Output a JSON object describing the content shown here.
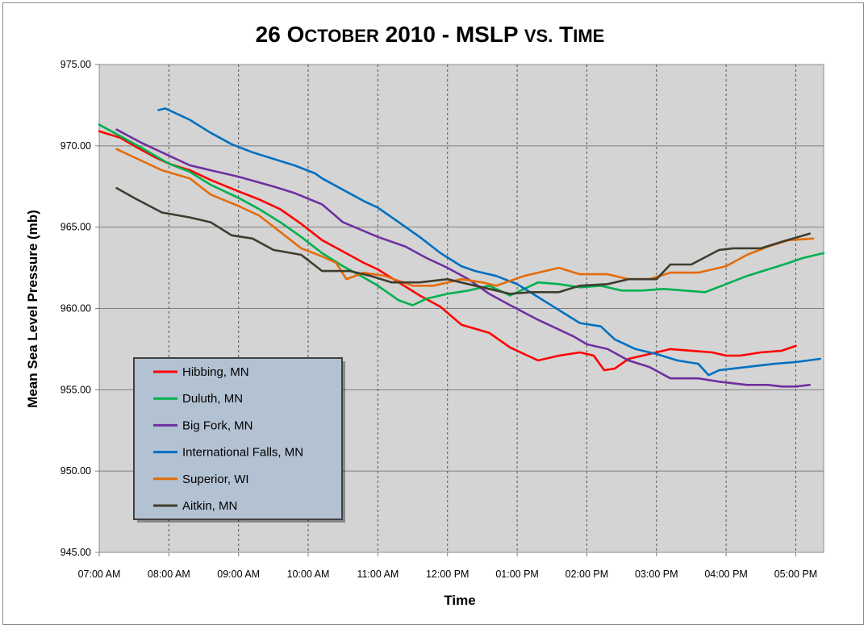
{
  "chart_data": {
    "type": "line",
    "title_parts": {
      "date": "26",
      "month_cap": "O",
      "month_rest": "CTOBER",
      "year_var": "2010 - MSLP",
      "vs": "VS.",
      "time_cap": "T",
      "time_rest": "IME"
    },
    "xlabel": "Time",
    "ylabel": "Mean Sea Level Pressure (mb)",
    "ylim": [
      945,
      975
    ],
    "xlim": [
      7.0,
      17.4
    ],
    "yticks": [
      "945.00",
      "950.00",
      "955.00",
      "960.00",
      "965.00",
      "970.00",
      "975.00"
    ],
    "xticks": [
      "07:00 AM",
      "08:00 AM",
      "09:00 AM",
      "10:00 AM",
      "11:00 AM",
      "12:00 PM",
      "01:00 PM",
      "02:00 PM",
      "03:00 PM",
      "04:00 PM",
      "05:00 PM"
    ],
    "grid": true,
    "legend_position": "bottom-left",
    "series": [
      {
        "name": "Hibbing, MN",
        "color": "#ff0000",
        "points": [
          [
            7.0,
            970.9
          ],
          [
            7.3,
            970.5
          ],
          [
            7.5,
            970.0
          ],
          [
            7.8,
            969.3
          ],
          [
            8.0,
            968.9
          ],
          [
            8.3,
            968.5
          ],
          [
            8.6,
            967.9
          ],
          [
            9.0,
            967.2
          ],
          [
            9.3,
            966.7
          ],
          [
            9.6,
            966.1
          ],
          [
            9.9,
            965.2
          ],
          [
            10.2,
            964.2
          ],
          [
            10.5,
            963.5
          ],
          [
            10.8,
            962.8
          ],
          [
            11.0,
            962.4
          ],
          [
            11.3,
            961.6
          ],
          [
            11.6,
            960.8
          ],
          [
            11.9,
            960.1
          ],
          [
            12.2,
            959.0
          ],
          [
            12.6,
            958.5
          ],
          [
            12.9,
            957.6
          ],
          [
            13.1,
            957.2
          ],
          [
            13.3,
            956.8
          ],
          [
            13.6,
            957.1
          ],
          [
            13.9,
            957.3
          ],
          [
            14.1,
            957.1
          ],
          [
            14.25,
            956.2
          ],
          [
            14.4,
            956.3
          ],
          [
            14.6,
            956.9
          ],
          [
            14.9,
            957.2
          ],
          [
            15.2,
            957.5
          ],
          [
            15.5,
            957.4
          ],
          [
            15.8,
            957.3
          ],
          [
            16.0,
            957.1
          ],
          [
            16.2,
            957.1
          ],
          [
            16.5,
            957.3
          ],
          [
            16.8,
            957.4
          ],
          [
            17.0,
            957.7
          ]
        ]
      },
      {
        "name": "Duluth, MN",
        "color": "#00b050",
        "points": [
          [
            7.0,
            971.3
          ],
          [
            7.3,
            970.6
          ],
          [
            7.6,
            969.9
          ],
          [
            8.0,
            968.9
          ],
          [
            8.3,
            968.4
          ],
          [
            8.6,
            967.6
          ],
          [
            9.0,
            966.8
          ],
          [
            9.3,
            966.1
          ],
          [
            9.6,
            965.3
          ],
          [
            9.9,
            964.4
          ],
          [
            10.2,
            963.4
          ],
          [
            10.5,
            962.6
          ],
          [
            10.8,
            961.9
          ],
          [
            11.0,
            961.4
          ],
          [
            11.3,
            960.5
          ],
          [
            11.5,
            960.2
          ],
          [
            11.7,
            960.6
          ],
          [
            12.0,
            960.9
          ],
          [
            12.3,
            961.1
          ],
          [
            12.6,
            961.4
          ],
          [
            12.9,
            960.8
          ],
          [
            13.1,
            961.2
          ],
          [
            13.3,
            961.6
          ],
          [
            13.6,
            961.5
          ],
          [
            13.9,
            961.3
          ],
          [
            14.2,
            961.4
          ],
          [
            14.5,
            961.1
          ],
          [
            14.8,
            961.1
          ],
          [
            15.1,
            961.2
          ],
          [
            15.4,
            961.1
          ],
          [
            15.7,
            961.0
          ],
          [
            16.0,
            961.5
          ],
          [
            16.3,
            962.0
          ],
          [
            16.6,
            962.4
          ],
          [
            16.9,
            962.8
          ],
          [
            17.1,
            963.1
          ],
          [
            17.4,
            963.4
          ]
        ]
      },
      {
        "name": "Big Fork, MN",
        "color": "#7030a0",
        "points": [
          [
            7.25,
            971.0
          ],
          [
            7.6,
            970.2
          ],
          [
            8.0,
            969.4
          ],
          [
            8.3,
            968.8
          ],
          [
            8.6,
            968.5
          ],
          [
            9.0,
            968.1
          ],
          [
            9.5,
            967.5
          ],
          [
            9.8,
            967.1
          ],
          [
            10.2,
            966.4
          ],
          [
            10.5,
            965.3
          ],
          [
            11.0,
            964.4
          ],
          [
            11.4,
            963.8
          ],
          [
            11.7,
            963.1
          ],
          [
            12.0,
            962.5
          ],
          [
            12.3,
            961.8
          ],
          [
            12.6,
            960.9
          ],
          [
            12.9,
            960.2
          ],
          [
            13.3,
            959.3
          ],
          [
            13.8,
            958.3
          ],
          [
            14.0,
            957.8
          ],
          [
            14.3,
            957.5
          ],
          [
            14.6,
            956.8
          ],
          [
            14.9,
            956.4
          ],
          [
            15.2,
            955.7
          ],
          [
            15.6,
            955.7
          ],
          [
            15.9,
            955.5
          ],
          [
            16.3,
            955.3
          ],
          [
            16.6,
            955.3
          ],
          [
            16.8,
            955.2
          ],
          [
            17.0,
            955.2
          ],
          [
            17.2,
            955.3
          ]
        ]
      },
      {
        "name": "International Falls, MN",
        "color": "#0070c0",
        "points": [
          [
            7.85,
            972.2
          ],
          [
            7.95,
            972.3
          ],
          [
            8.3,
            971.6
          ],
          [
            8.6,
            970.8
          ],
          [
            8.9,
            970.1
          ],
          [
            9.2,
            969.6
          ],
          [
            9.5,
            969.2
          ],
          [
            9.8,
            968.8
          ],
          [
            10.1,
            968.3
          ],
          [
            10.2,
            968.0
          ],
          [
            10.5,
            967.3
          ],
          [
            10.8,
            966.6
          ],
          [
            11.0,
            966.2
          ],
          [
            11.3,
            965.3
          ],
          [
            11.6,
            964.4
          ],
          [
            11.9,
            963.4
          ],
          [
            12.2,
            962.6
          ],
          [
            12.4,
            962.3
          ],
          [
            12.7,
            962.0
          ],
          [
            13.0,
            961.5
          ],
          [
            13.3,
            960.7
          ],
          [
            13.6,
            959.9
          ],
          [
            13.9,
            959.1
          ],
          [
            14.2,
            958.9
          ],
          [
            14.4,
            958.1
          ],
          [
            14.7,
            957.5
          ],
          [
            15.0,
            957.2
          ],
          [
            15.3,
            956.8
          ],
          [
            15.6,
            956.6
          ],
          [
            15.75,
            955.9
          ],
          [
            15.9,
            956.2
          ],
          [
            16.3,
            956.4
          ],
          [
            16.7,
            956.6
          ],
          [
            17.0,
            956.7
          ],
          [
            17.35,
            956.9
          ]
        ]
      },
      {
        "name": "Superior, WI",
        "color": "#e46c0a",
        "points": [
          [
            7.25,
            969.8
          ],
          [
            7.5,
            969.3
          ],
          [
            7.9,
            968.5
          ],
          [
            8.3,
            968.0
          ],
          [
            8.6,
            967.0
          ],
          [
            9.0,
            966.3
          ],
          [
            9.3,
            965.7
          ],
          [
            9.6,
            964.7
          ],
          [
            9.9,
            963.7
          ],
          [
            10.2,
            963.2
          ],
          [
            10.4,
            962.8
          ],
          [
            10.55,
            961.8
          ],
          [
            10.8,
            962.2
          ],
          [
            11.1,
            962.0
          ],
          [
            11.5,
            961.4
          ],
          [
            11.8,
            961.4
          ],
          [
            12.2,
            961.8
          ],
          [
            12.5,
            961.6
          ],
          [
            12.7,
            961.4
          ],
          [
            13.1,
            962.0
          ],
          [
            13.4,
            962.3
          ],
          [
            13.6,
            962.5
          ],
          [
            13.9,
            962.1
          ],
          [
            14.3,
            962.1
          ],
          [
            14.6,
            961.8
          ],
          [
            14.9,
            961.8
          ],
          [
            15.2,
            962.2
          ],
          [
            15.6,
            962.2
          ],
          [
            16.0,
            962.6
          ],
          [
            16.3,
            963.3
          ],
          [
            16.6,
            963.8
          ],
          [
            16.9,
            964.2
          ],
          [
            17.25,
            964.3
          ]
        ]
      },
      {
        "name": "Aitkin, MN",
        "color": "#403d2e",
        "points": [
          [
            7.25,
            967.4
          ],
          [
            7.5,
            966.8
          ],
          [
            7.9,
            965.9
          ],
          [
            8.3,
            965.6
          ],
          [
            8.6,
            965.3
          ],
          [
            8.9,
            964.5
          ],
          [
            9.2,
            964.3
          ],
          [
            9.5,
            963.6
          ],
          [
            9.9,
            963.3
          ],
          [
            10.2,
            962.3
          ],
          [
            10.6,
            962.3
          ],
          [
            10.9,
            962.0
          ],
          [
            11.2,
            961.6
          ],
          [
            11.6,
            961.6
          ],
          [
            12.0,
            961.8
          ],
          [
            12.3,
            961.5
          ],
          [
            12.6,
            961.2
          ],
          [
            12.9,
            960.9
          ],
          [
            13.2,
            961.0
          ],
          [
            13.6,
            961.0
          ],
          [
            13.9,
            961.4
          ],
          [
            14.3,
            961.5
          ],
          [
            14.6,
            961.8
          ],
          [
            15.0,
            961.8
          ],
          [
            15.2,
            962.7
          ],
          [
            15.5,
            962.7
          ],
          [
            15.9,
            963.6
          ],
          [
            16.1,
            963.7
          ],
          [
            16.5,
            963.7
          ],
          [
            16.8,
            964.1
          ],
          [
            17.2,
            964.6
          ]
        ]
      }
    ]
  }
}
